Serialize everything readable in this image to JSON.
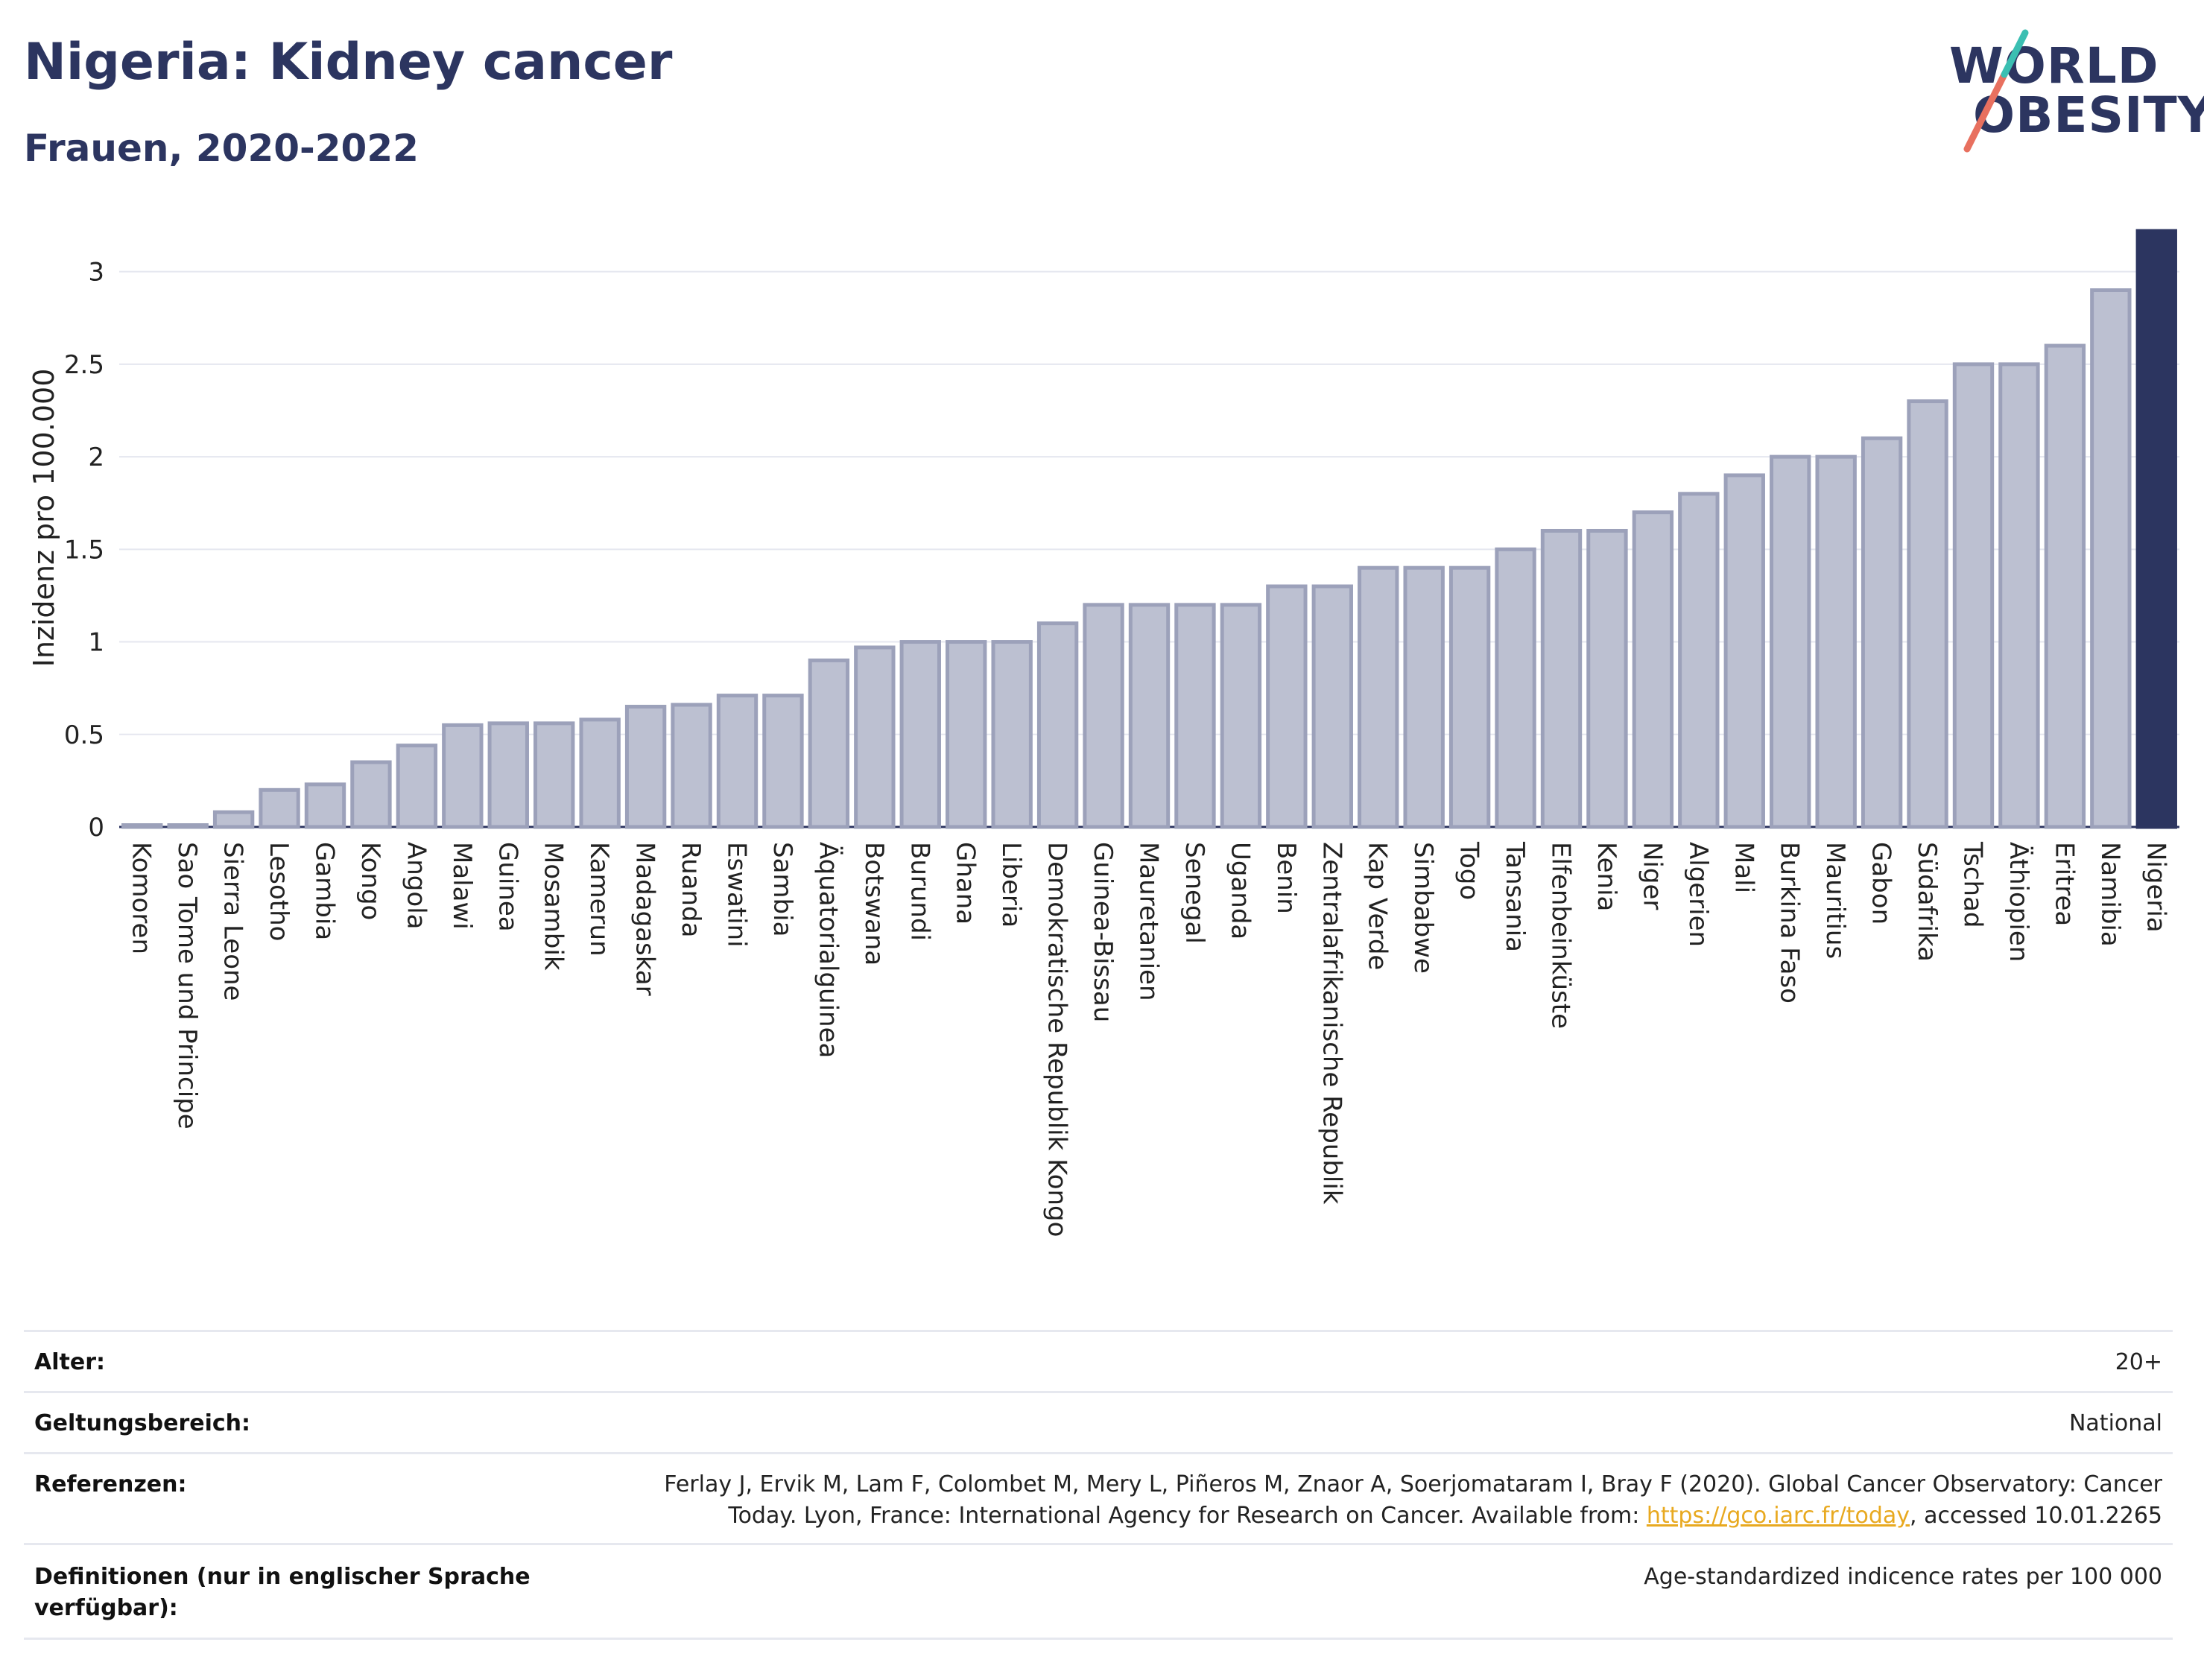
{
  "title": "Nigeria: Kidney cancer",
  "subtitle": "Frauen, 2020-2022",
  "logo": {
    "line1": "WORLD",
    "line2": "OBESITY"
  },
  "chart_data": {
    "type": "bar",
    "ylabel": "Inzidenz pro 100.000",
    "ylim": [
      0,
      3.22
    ],
    "yticks": [
      0,
      0.5,
      1,
      1.5,
      2,
      2.5,
      3
    ],
    "ytick_labels": [
      "0",
      "0.5",
      "1",
      "1.5",
      "2",
      "2.5",
      "3"
    ],
    "grid": true,
    "highlight": "Nigeria",
    "colors": {
      "bar": "#bcc0d1",
      "bar_edge": "#9ca1ba",
      "highlight": "#2c3560"
    },
    "categories": [
      "Komoren",
      "Sao Tome und Principe",
      "Sierra Leone",
      "Lesotho",
      "Gambia",
      "Kongo",
      "Angola",
      "Malawi",
      "Guinea",
      "Mosambik",
      "Kamerun",
      "Madagaskar",
      "Ruanda",
      "Eswatini",
      "Sambia",
      "Äquatorialguinea",
      "Botswana",
      "Burundi",
      "Ghana",
      "Liberia",
      "Demokratische Republik Kongo",
      "Guinea-Bissau",
      "Mauretanien",
      "Senegal",
      "Uganda",
      "Benin",
      "Zentralafrikanische Republik",
      "Kap Verde",
      "Simbabwe",
      "Togo",
      "Tansania",
      "Elfenbeinküste",
      "Kenia",
      "Niger",
      "Algerien",
      "Mali",
      "Burkina Faso",
      "Mauritius",
      "Gabon",
      "Südafrika",
      "Tschad",
      "Äthiopien",
      "Eritrea",
      "Namibia",
      "Nigeria"
    ],
    "values": [
      0.01,
      0.01,
      0.08,
      0.2,
      0.23,
      0.35,
      0.44,
      0.55,
      0.56,
      0.56,
      0.58,
      0.65,
      0.66,
      0.71,
      0.71,
      0.9,
      0.97,
      1.0,
      1.0,
      1.0,
      1.1,
      1.2,
      1.2,
      1.2,
      1.2,
      1.3,
      1.3,
      1.4,
      1.4,
      1.4,
      1.5,
      1.6,
      1.6,
      1.7,
      1.8,
      1.9,
      2.0,
      2.0,
      2.1,
      2.3,
      2.5,
      2.5,
      2.6,
      2.9,
      3.22
    ]
  },
  "meta": [
    {
      "label": "Alter:",
      "value": "20+"
    },
    {
      "label": "Geltungsbereich:",
      "value": "National"
    },
    {
      "label": "Referenzen:",
      "value_line1": "Ferlay J, Ervik M, Lam F, Colombet M, Mery L, Piñeros M, Znaor A, Soerjomataram I, Bray F (2020). Global Cancer Observatory: Cancer",
      "value_line2_pre": "Today. Lyon, France: International Agency for Research on Cancer. Available from: ",
      "link": "https://gco.iarc.fr/today",
      "value_line2_post": ", accessed 10.01.2265"
    },
    {
      "label_line1": "Definitionen (nur in englischer Sprache",
      "label_line2": "verfügbar):",
      "value": "Age-standardized indicence rates per 100 000"
    }
  ]
}
